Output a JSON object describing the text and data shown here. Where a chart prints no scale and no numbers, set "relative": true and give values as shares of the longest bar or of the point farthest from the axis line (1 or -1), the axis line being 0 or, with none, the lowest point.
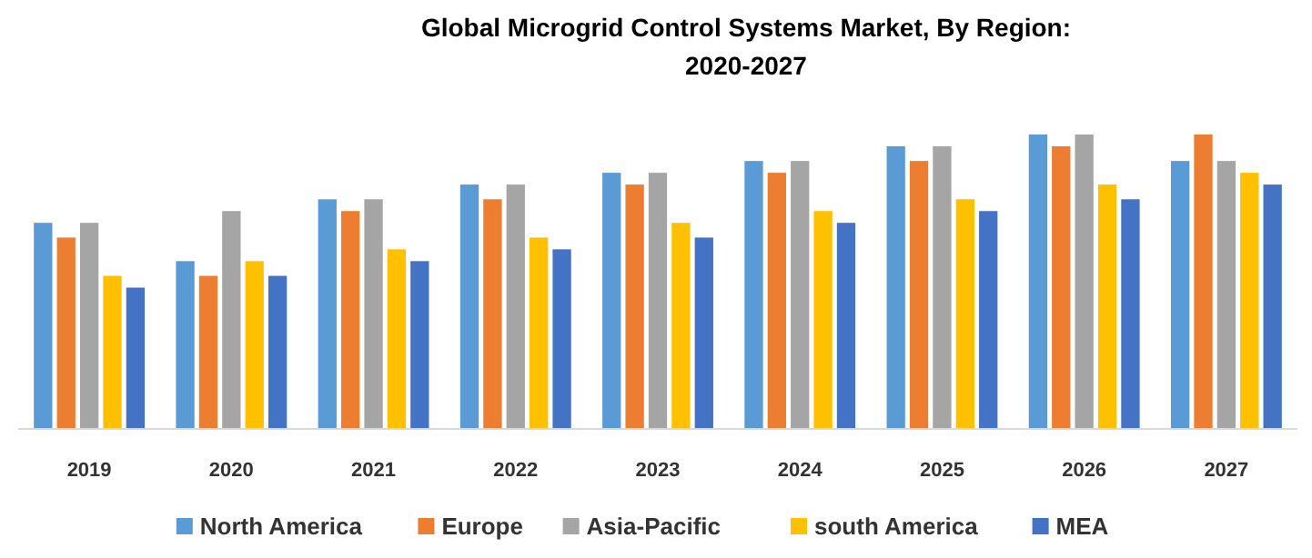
{
  "chart_data": {
    "type": "bar",
    "title": "Global Microgrid Control Systems Market, By Region:\n2020-2027",
    "relative": true,
    "legend": "bottom",
    "categories": [
      "2019",
      "2020",
      "2021",
      "2022",
      "2023",
      "2024",
      "2025",
      "2026",
      "2027"
    ],
    "series": [
      {
        "name": "North America",
        "color": "#5b9bd5",
        "values": [
          0.7,
          0.57,
          0.78,
          0.83,
          0.87,
          0.91,
          0.96,
          1,
          0.91
        ]
      },
      {
        "name": "Europe",
        "color": "#ed7d31",
        "values": [
          0.65,
          0.52,
          0.74,
          0.78,
          0.83,
          0.87,
          0.91,
          0.96,
          1
        ]
      },
      {
        "name": "Asia-Pacific",
        "color": "#a5a5a5",
        "values": [
          0.7,
          0.74,
          0.78,
          0.83,
          0.87,
          0.91,
          0.96,
          1,
          0.91
        ]
      },
      {
        "name": "south America",
        "color": "#ffc000",
        "values": [
          0.52,
          0.57,
          0.61,
          0.65,
          0.7,
          0.74,
          0.78,
          0.83,
          0.87
        ]
      },
      {
        "name": "MEA",
        "color": "#4472c4",
        "values": [
          0.48,
          0.52,
          0.57,
          0.61,
          0.65,
          0.7,
          0.74,
          0.78,
          0.83
        ]
      }
    ]
  }
}
